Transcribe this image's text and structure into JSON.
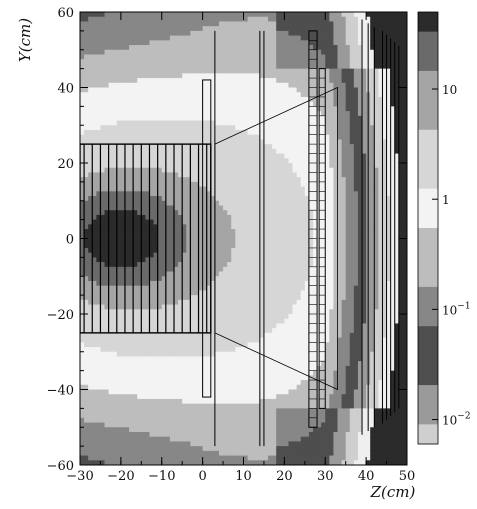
{
  "chart_data": {
    "type": "heatmap",
    "title": "",
    "xlabel": "Z(cm)",
    "ylabel": "Y(cm)",
    "xlim": [
      -30,
      50
    ],
    "ylim": [
      -60,
      60
    ],
    "x_ticks": [
      -30,
      -20,
      -10,
      0,
      10,
      20,
      30,
      40,
      50
    ],
    "x_tick_labels": [
      "−30",
      "−20",
      "−10",
      "0",
      "10",
      "20",
      "30",
      "40",
      "50"
    ],
    "y_ticks": [
      60,
      40,
      20,
      0,
      -20,
      -40,
      -60
    ],
    "y_tick_labels": [
      "60",
      "40",
      "20",
      "0",
      "−20",
      "−40",
      "−60"
    ],
    "colorbar": {
      "scale": "log",
      "range": [
        0.006,
        50
      ],
      "labels": [
        {
          "value": 10,
          "text": "10"
        },
        {
          "value": 1,
          "text": "1"
        },
        {
          "value": 0.1,
          "base": "10",
          "exp": "−1"
        },
        {
          "value": 0.01,
          "base": "10",
          "exp": "−2"
        }
      ],
      "levels": 22
    },
    "field": {
      "description_points": [
        {
          "z": -20,
          "y": 0,
          "value": 40
        },
        {
          "z": 15,
          "y": 0,
          "value": 0.8
        },
        {
          "z": 45,
          "y": 0,
          "value": 0.01
        }
      ]
    },
    "structures": {
      "target_box": {
        "z": [
          -30,
          2
        ],
        "y": [
          -25,
          25
        ],
        "vertical_lines_z": [
          -29,
          -27,
          -25,
          -23,
          -21,
          -19,
          -17,
          -15,
          -13,
          -11,
          -9,
          -7,
          -5,
          -3,
          -1,
          1
        ]
      },
      "plate_at_z": [
        {
          "z": [
            0,
            2
          ],
          "y": [
            -42,
            42
          ]
        }
      ],
      "line_at_z": [
        3,
        14,
        15
      ],
      "cone": {
        "z": [
          3,
          33
        ],
        "y_start": [
          -25,
          25
        ],
        "y_end": [
          -40,
          40
        ]
      },
      "ladder_at_z": [
        {
          "z": [
            26,
            28
          ],
          "y": [
            -50,
            55
          ]
        },
        {
          "z": [
            28.5,
            30
          ],
          "y": [
            -45,
            45
          ]
        }
      ],
      "outer_lines_z": [
        39,
        40.5,
        42,
        44,
        45,
        46,
        47,
        48
      ]
    }
  }
}
